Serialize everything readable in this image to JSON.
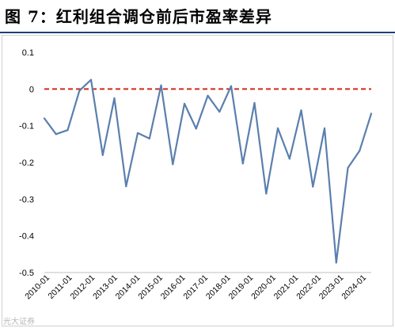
{
  "header": {
    "title": "图 7：红利组合调仓前后市盈率差异"
  },
  "watermark": {
    "text": "光大证券"
  },
  "colors": {
    "series": "#5a7fae",
    "reference": "#d0281e",
    "title_rule": "#1f3f79"
  },
  "chart_data": {
    "type": "line",
    "title": "",
    "xlabel": "",
    "ylabel": "",
    "ylim": [
      -0.5,
      0.1
    ],
    "y_ticks": [
      0.1,
      0,
      -0.1,
      -0.2,
      -0.3,
      -0.4,
      -0.5
    ],
    "y_tick_labels": [
      "0.1",
      "0",
      "-0.1",
      "-0.2",
      "-0.3",
      "-0.4",
      "-0.5"
    ],
    "x_tick_labels": [
      "2010-01",
      "2011-01",
      "2012-01",
      "2013-01",
      "2014-01",
      "2015-01",
      "2016-01",
      "2017-01",
      "2018-01",
      "2019-01",
      "2020-01",
      "2021-01",
      "2022-01",
      "2023-01",
      "2024-01"
    ],
    "grid": false,
    "legend": "none",
    "reference_line": {
      "y": 0,
      "style": "dashed"
    },
    "series": [
      {
        "values": [
          -0.08,
          -0.123,
          -0.112,
          -0.005,
          0.025,
          -0.18,
          -0.025,
          -0.265,
          -0.12,
          -0.135,
          0.01,
          -0.205,
          -0.04,
          -0.108,
          -0.018,
          -0.062,
          0.008,
          -0.203,
          -0.038,
          -0.285,
          -0.107,
          -0.19,
          -0.058,
          -0.266,
          -0.107,
          -0.473,
          -0.215,
          -0.168,
          -0.067
        ]
      }
    ]
  }
}
